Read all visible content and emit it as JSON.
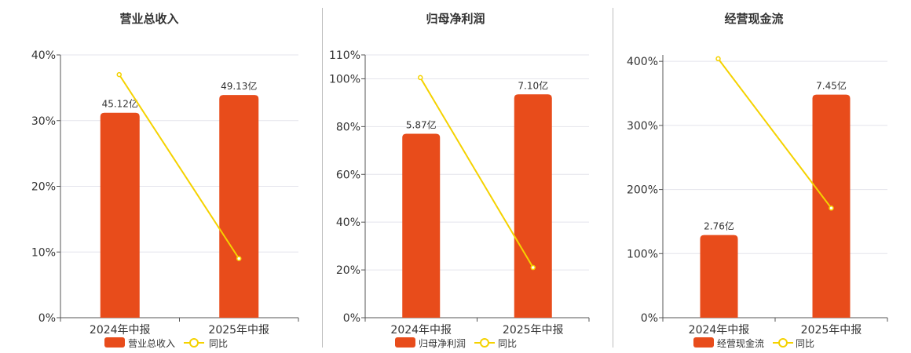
{
  "colors": {
    "bar": "#e84c1b",
    "line": "#f5d200",
    "grid": "#e4e4ec",
    "axis": "#555555",
    "text": "#333333"
  },
  "legend_yoy": "同比",
  "chart_data": [
    {
      "type": "bar",
      "title": "营业总收入",
      "categories": [
        "2024年中报",
        "2025年中报"
      ],
      "series": [
        {
          "name": "营业总收入",
          "type": "bar",
          "labels": [
            "45.12亿",
            "49.13亿"
          ],
          "values": [
            31.2,
            33.9
          ],
          "unit": "%"
        },
        {
          "name": "同比",
          "type": "line",
          "values": [
            37.0,
            9.0
          ],
          "unit": "%"
        }
      ],
      "ylim": [
        0,
        40
      ],
      "yticks": [
        "0%",
        "10%",
        "20%",
        "30%",
        "40%"
      ],
      "ytick_values": [
        0,
        10,
        20,
        30,
        40
      ]
    },
    {
      "type": "bar",
      "title": "归母净利润",
      "categories": [
        "2024年中报",
        "2025年中报"
      ],
      "series": [
        {
          "name": "归母净利润",
          "type": "bar",
          "labels": [
            "5.87亿",
            "7.10亿"
          ],
          "values": [
            77.0,
            93.5
          ],
          "unit": "%"
        },
        {
          "name": "同比",
          "type": "line",
          "values": [
            100.5,
            21.0
          ],
          "unit": "%"
        }
      ],
      "ylim": [
        0,
        110
      ],
      "yticks": [
        "0%",
        "20%",
        "40%",
        "60%",
        "80%",
        "100%",
        "110%"
      ],
      "ytick_values": [
        0,
        20,
        40,
        60,
        80,
        100,
        110
      ]
    },
    {
      "type": "bar",
      "title": "经营现金流",
      "categories": [
        "2024年中报",
        "2025年中报"
      ],
      "series": [
        {
          "name": "经营现金流",
          "type": "bar",
          "labels": [
            "2.76亿",
            "7.45亿"
          ],
          "values": [
            129,
            348
          ],
          "unit": "%"
        },
        {
          "name": "同比",
          "type": "line",
          "values": [
            404,
            171
          ],
          "unit": "%"
        }
      ],
      "ylim": [
        0,
        410
      ],
      "yticks": [
        "0%",
        "100%",
        "200%",
        "300%",
        "400%"
      ],
      "ytick_values": [
        0,
        100,
        200,
        300,
        400
      ]
    }
  ]
}
